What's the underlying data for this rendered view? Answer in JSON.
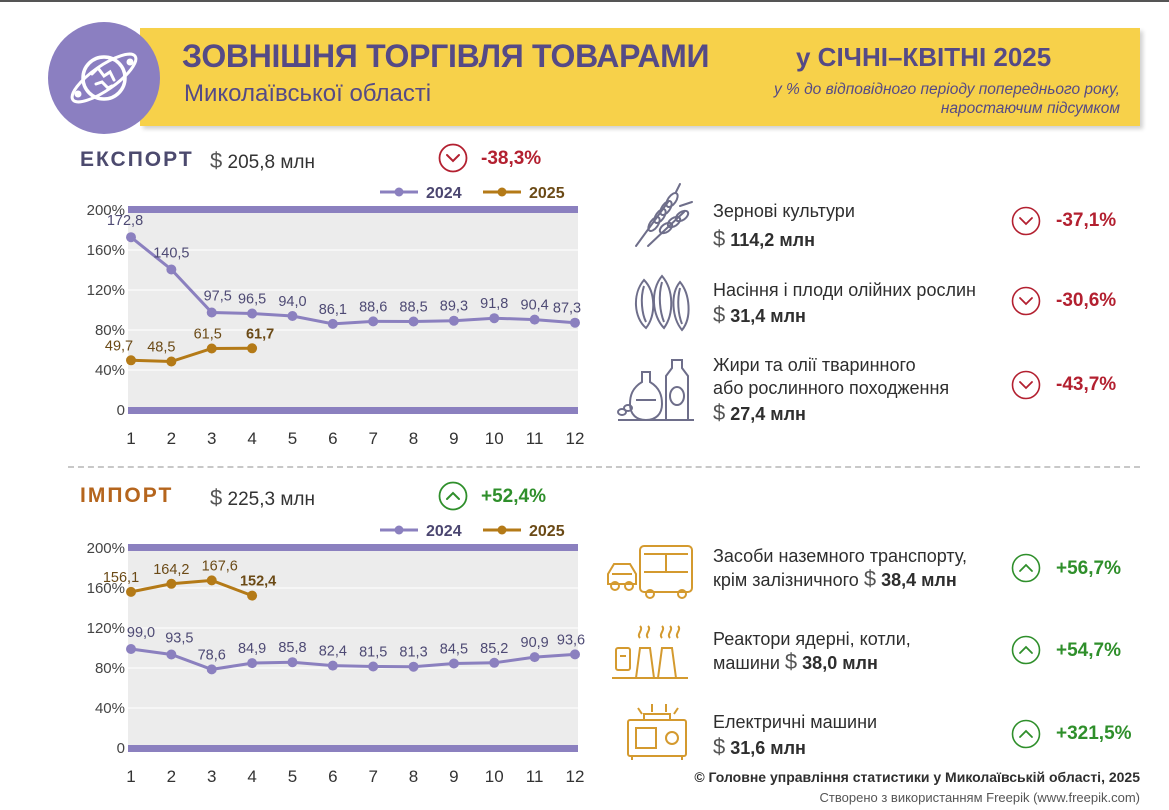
{
  "header": {
    "title": "ЗОВНІШНЯ ТОРГІВЛЯ ТОВАРАМИ",
    "subtitle": "Миколаївської області",
    "period": "у СІЧНІ–КВІТНІ 2025",
    "note_line1": "у % до відповідного періоду попереднього року,",
    "note_line2": "наростаючим підсумком",
    "logo_icon": "globe-trade-icon"
  },
  "export": {
    "title": "ЕКСПОРТ",
    "amount": "205,8 млн",
    "change": "-38,3%",
    "categories": [
      {
        "icon": "wheat-icon",
        "label": "Зернові культури",
        "amount": "114,2 млн",
        "change": "-37,1%"
      },
      {
        "icon": "sunflower-seeds-icon",
        "label": "Насіння і плоди олійних рослин",
        "amount": "31,4 млн",
        "change": "-30,6%"
      },
      {
        "icon": "oil-bottles-icon",
        "label_line1": "Жири та олії тваринного",
        "label_line2": "або рослинного походження",
        "amount": "27,4 млн",
        "change": "-43,7%"
      }
    ]
  },
  "import": {
    "title": "ІМПОРТ",
    "amount": "225,3 млн",
    "change": "+52,4%",
    "categories": [
      {
        "icon": "bus-car-icon",
        "label_line1": "Засоби наземного транспорту,",
        "label_line2": "крім залізничного",
        "amount": "38,4 млн",
        "change": "+56,7%"
      },
      {
        "icon": "power-plant-icon",
        "label_line1": "Реактори ядерні, котли,",
        "label_line2": "машини",
        "amount": "38,0 млн",
        "change": "+54,7%"
      },
      {
        "icon": "generator-icon",
        "label": "Електричні машини",
        "amount": "31,6 млн",
        "change": "+321,5%"
      }
    ]
  },
  "footer": {
    "source": "© Головне управління статистики у Миколаївській області, 2025",
    "credit": "Створено з використанням Freepik (www.freepik.com)"
  },
  "colors": {
    "series_2024": "#8b80bf",
    "series_2025": "#b47a17",
    "chart_bg": "#ececec",
    "negative": "#b32030",
    "positive": "#2f8f2b",
    "banner": "#f7d14a",
    "title": "#554a86",
    "export_title": "#4c4a6e",
    "import_title": "#b5651d"
  },
  "chart_data": [
    {
      "type": "line",
      "title": "ЕКСПОРТ",
      "x": [
        1,
        2,
        3,
        4,
        5,
        6,
        7,
        8,
        9,
        10,
        11,
        12
      ],
      "ylim": [
        0,
        200
      ],
      "yticks": [
        0,
        40,
        80,
        120,
        160,
        200
      ],
      "ytick_labels": [
        "0",
        "40%",
        "80%",
        "120%",
        "160%",
        "200%"
      ],
      "legend": "top-right",
      "series": [
        {
          "name": "2024",
          "x": [
            1,
            2,
            3,
            4,
            5,
            6,
            7,
            8,
            9,
            10,
            11,
            12
          ],
          "values": [
            172.8,
            140.5,
            97.5,
            96.5,
            94.0,
            86.1,
            88.6,
            88.5,
            89.3,
            91.8,
            90.4,
            87.3
          ],
          "labels": [
            "172,8",
            "140,5",
            "97,5",
            "96,5",
            "94,0",
            "86,1",
            "88,6",
            "88,5",
            "89,3",
            "91,8",
            "90,4",
            "87,3"
          ]
        },
        {
          "name": "2025",
          "x": [
            1,
            2,
            3,
            4
          ],
          "values": [
            49.7,
            48.5,
            61.5,
            61.7
          ],
          "labels": [
            "49,7",
            "48,5",
            "61,5",
            "61,7"
          ]
        }
      ]
    },
    {
      "type": "line",
      "title": "ІМПОРТ",
      "x": [
        1,
        2,
        3,
        4,
        5,
        6,
        7,
        8,
        9,
        10,
        11,
        12
      ],
      "ylim": [
        0,
        200
      ],
      "yticks": [
        0,
        40,
        80,
        120,
        160,
        200
      ],
      "ytick_labels": [
        "0",
        "40%",
        "80%",
        "120%",
        "160%",
        "200%"
      ],
      "legend": "top-right",
      "series": [
        {
          "name": "2024",
          "x": [
            1,
            2,
            3,
            4,
            5,
            6,
            7,
            8,
            9,
            10,
            11,
            12
          ],
          "values": [
            99.0,
            93.5,
            78.6,
            84.9,
            85.8,
            82.4,
            81.5,
            81.3,
            84.5,
            85.2,
            90.9,
            93.6
          ],
          "labels": [
            "99,0",
            "93,5",
            "78,6",
            "84,9",
            "85,8",
            "82,4",
            "81,5",
            "81,3",
            "84,5",
            "85,2",
            "90,9",
            "93,6"
          ]
        },
        {
          "name": "2025",
          "x": [
            1,
            2,
            3,
            4
          ],
          "values": [
            156.1,
            164.2,
            167.6,
            152.4
          ],
          "labels": [
            "156,1",
            "164,2",
            "167,6",
            "152,4"
          ]
        }
      ]
    }
  ]
}
